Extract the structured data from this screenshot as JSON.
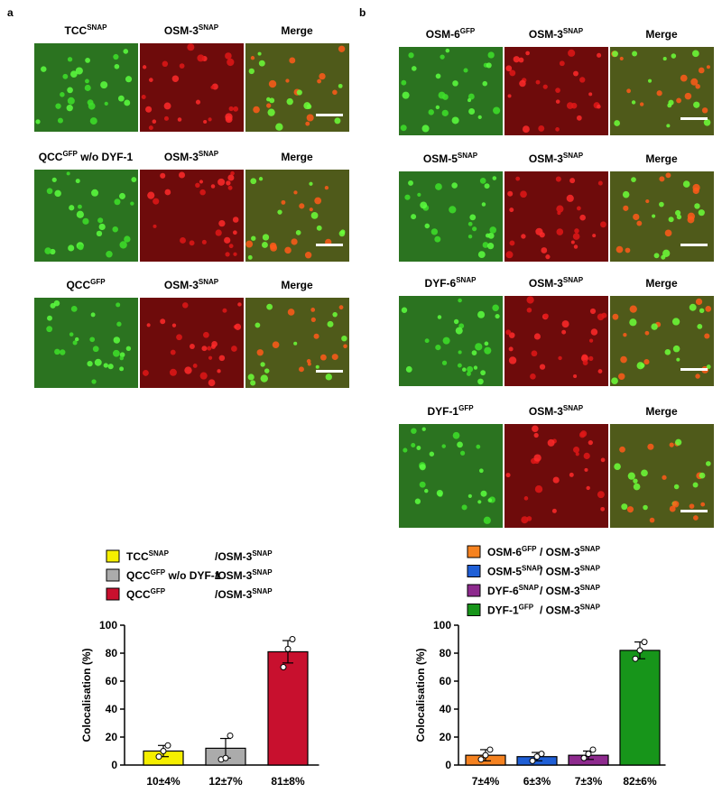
{
  "panels": [
    {
      "label": "a",
      "rows": [
        [
          {
            "text": "TCC",
            "sup": "SNAP"
          },
          {
            "text": "OSM-3",
            "sup": "SNAP"
          },
          {
            "text": "Merge"
          }
        ],
        [
          {
            "text": "QCC",
            "sup": "GFP",
            "after": " w/o DYF-1"
          },
          {
            "text": "OSM-3",
            "sup": "SNAP"
          },
          {
            "text": "Merge"
          }
        ],
        [
          {
            "text": "QCC",
            "sup": "GFP"
          },
          {
            "text": "OSM-3",
            "sup": "SNAP"
          },
          {
            "text": "Merge"
          }
        ]
      ]
    },
    {
      "label": "b",
      "rows": [
        [
          {
            "text": "OSM-6",
            "sup": "GFP"
          },
          {
            "text": "OSM-3",
            "sup": "SNAP"
          },
          {
            "text": "Merge"
          }
        ],
        [
          {
            "text": "OSM-5",
            "sup": "SNAP"
          },
          {
            "text": "OSM-3",
            "sup": "SNAP"
          },
          {
            "text": "Merge"
          }
        ],
        [
          {
            "text": "DYF-6",
            "sup": "SNAP"
          },
          {
            "text": "OSM-3",
            "sup": "SNAP"
          },
          {
            "text": "Merge"
          }
        ],
        [
          {
            "text": "DYF-1",
            "sup": "GFP"
          },
          {
            "text": "OSM-3",
            "sup": "SNAP"
          },
          {
            "text": "Merge"
          }
        ]
      ]
    }
  ],
  "chart_data": [
    {
      "type": "bar",
      "y_label": "Colocalisation (%)",
      "legend": [
        {
          "text": "TCC",
          "sup": "SNAP",
          "partner": "/OSM-3",
          "partner_sup": "SNAP"
        },
        {
          "text": "QCC",
          "sup": "GFP",
          "after": " w/o DYF-1",
          "partner": "/OSM-3",
          "partner_sup": "SNAP"
        },
        {
          "text": "QCC",
          "sup": "GFP",
          "partner": "/OSM-3",
          "partner_sup": "SNAP"
        }
      ],
      "values": [
        10,
        12,
        81
      ],
      "errors": [
        4,
        7,
        8
      ],
      "value_labels": [
        "10±4%",
        "12±7%",
        "81±8%"
      ],
      "points": [
        [
          6,
          10,
          14
        ],
        [
          4,
          5,
          21
        ],
        [
          70,
          83,
          90
        ]
      ],
      "colors": [
        "#f5ef00",
        "#ababab",
        "#c8102e"
      ],
      "ylim": [
        0,
        100
      ],
      "yticks": [
        0,
        20,
        40,
        60,
        80,
        100
      ]
    },
    {
      "type": "bar",
      "y_label": "Colocalisation (%)",
      "legend": [
        {
          "text": "OSM-6",
          "sup": "GFP",
          "partner": "/ OSM-3",
          "partner_sup": "SNAP"
        },
        {
          "text": "OSM-5",
          "sup": "SNAP",
          "partner": "/ OSM-3",
          "partner_sup": "SNAP"
        },
        {
          "text": "DYF-6",
          "sup": "SNAP",
          "partner": "/ OSM-3",
          "partner_sup": "SNAP"
        },
        {
          "text": "DYF-1",
          "sup": "GFP",
          "partner": "/ OSM-3",
          "partner_sup": "SNAP"
        }
      ],
      "values": [
        7,
        6,
        7,
        82
      ],
      "errors": [
        4,
        3,
        3,
        6
      ],
      "value_labels": [
        "7±4%",
        "6±3%",
        "7±3%",
        "82±6%"
      ],
      "points": [
        [
          4,
          7,
          11
        ],
        [
          3,
          6,
          8
        ],
        [
          5,
          8,
          11
        ],
        [
          76,
          82,
          88
        ]
      ],
      "colors": [
        "#f58220",
        "#1f5fd6",
        "#8e2a8e",
        "#17951a"
      ],
      "ylim": [
        0,
        100
      ],
      "yticks": [
        0,
        20,
        40,
        60,
        80,
        100
      ]
    }
  ]
}
